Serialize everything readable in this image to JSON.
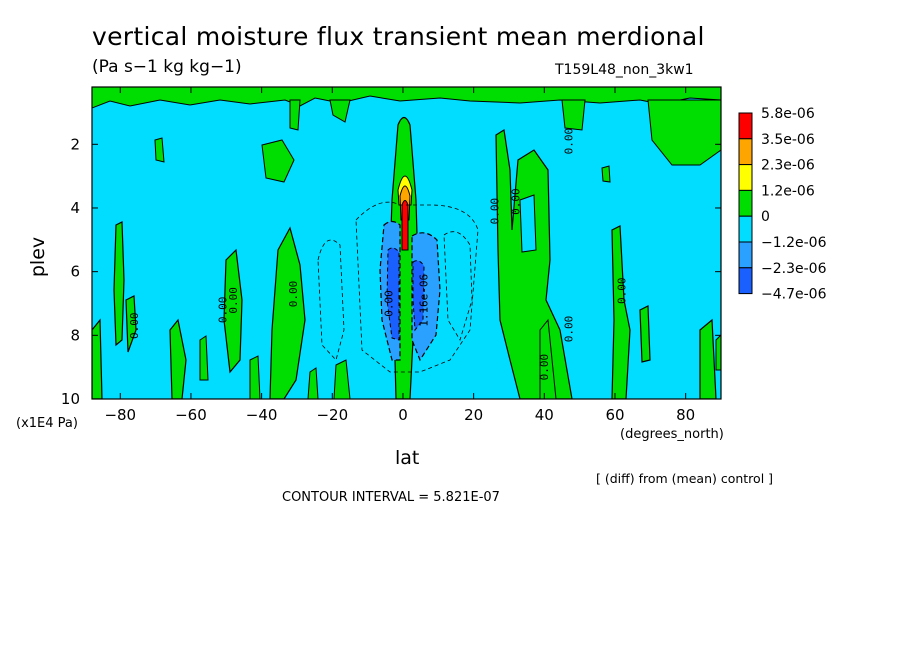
{
  "header": {
    "title": "vertical moisture flux transient mean merdional",
    "units": "(Pa s−1 kg kg−1)",
    "run_id": "T159L48_non_3kw1",
    "x_units_left": "(x1E4 Pa)",
    "x_units_right": "(degrees_north)",
    "comparison_note": "[ (diff) from (mean) control ]",
    "contour_interval": "CONTOUR INTERVAL = 5.821E-07"
  },
  "chart_data": {
    "type": "heatmap",
    "xlabel": "lat",
    "ylabel": "plev",
    "xlim": [
      -88,
      90
    ],
    "ylim": [
      10,
      0.2
    ],
    "x_ticks": [
      -80,
      -60,
      -40,
      -20,
      0,
      20,
      40,
      60,
      80
    ],
    "y_ticks": [
      2,
      4,
      6,
      8,
      10
    ],
    "legend_placement": "right",
    "colorbar": {
      "labels": [
        "5.8e-06",
        "3.5e-06",
        "2.3e-06",
        "1.2e-06",
        "0",
        "−1.2e-06",
        "−2.3e-06",
        "−4.7e-06"
      ],
      "colors": [
        "#ff0000",
        "#ffa500",
        "#ffff00",
        "#00dd00",
        "#00ddff",
        "#2aa0ff",
        "#1a60ff"
      ]
    },
    "colors": {
      "background_level": "#00ddff",
      "positive_low": "#00dd00",
      "positive_mid": "#ffff00",
      "positive_high": "#ffa500",
      "positive_max": "#ff0000",
      "negative_low": "#2aa0ff",
      "negative_high": "#1a60ff"
    },
    "contour_labels": [
      {
        "text": "0.00",
        "lat": -75,
        "p": 7.7
      },
      {
        "text": "0.00",
        "lat": -50,
        "p": 7.2
      },
      {
        "text": "0.00",
        "lat": -47,
        "p": 6.9
      },
      {
        "text": "0.00",
        "lat": -30,
        "p": 6.7
      },
      {
        "text": "0.00",
        "lat": 27,
        "p": 4.1
      },
      {
        "text": "0.00",
        "lat": 33,
        "p": 3.8
      },
      {
        "text": "0.00",
        "lat": 48,
        "p": 1.9
      },
      {
        "text": "0.00",
        "lat": 41,
        "p": 9.0
      },
      {
        "text": "0.00",
        "lat": 48,
        "p": 7.8
      },
      {
        "text": "0.00",
        "lat": 63,
        "p": 6.6
      },
      {
        "text": "1.16e-06",
        "lat": 7,
        "p": 6.9
      },
      {
        "text": "0.00",
        "lat": -3,
        "p": 7.0
      }
    ]
  }
}
